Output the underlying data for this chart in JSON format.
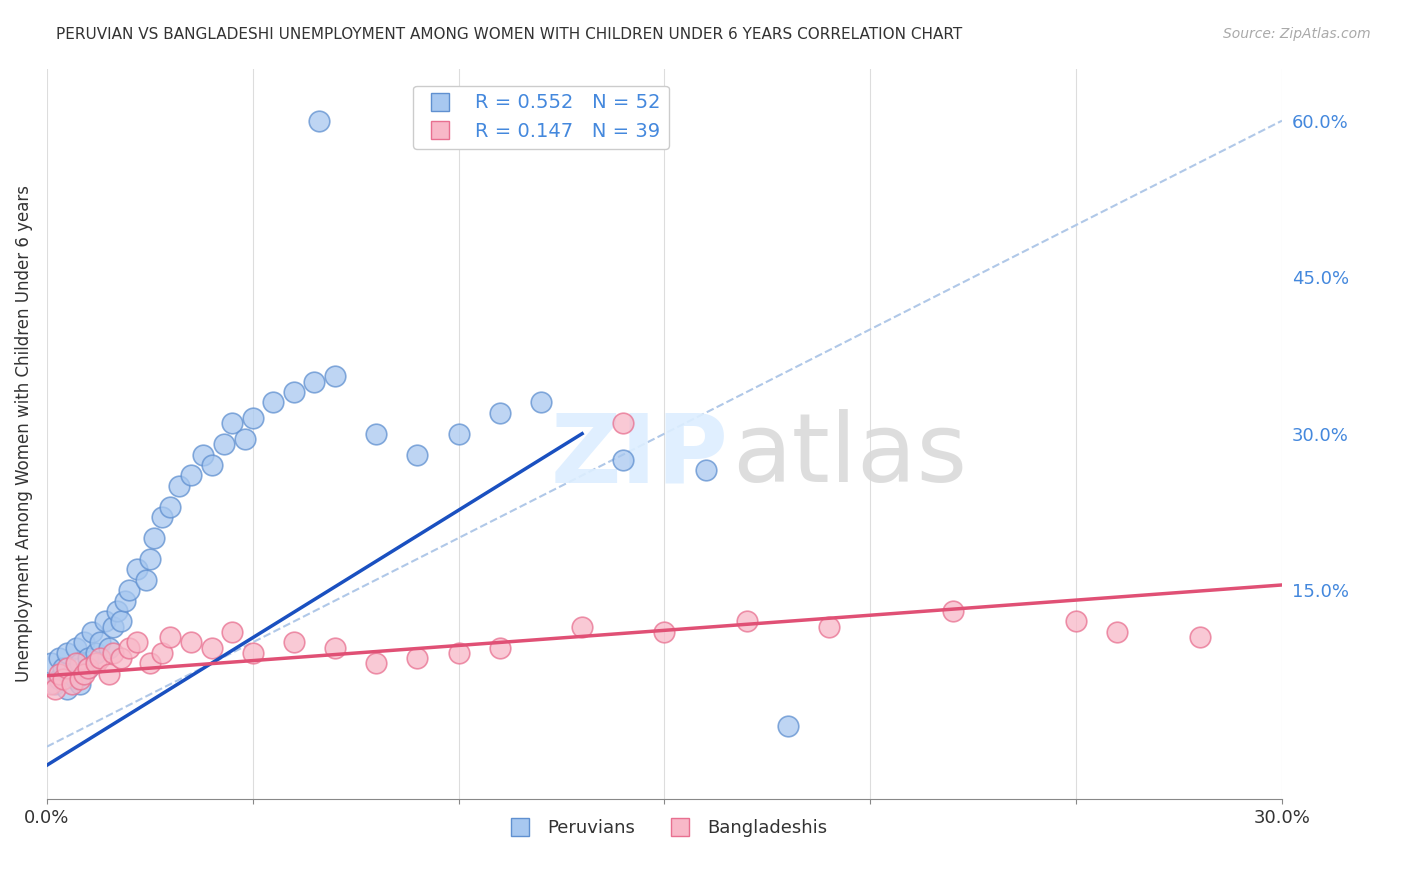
{
  "title": "PERUVIAN VS BANGLADESHI UNEMPLOYMENT AMONG WOMEN WITH CHILDREN UNDER 6 YEARS CORRELATION CHART",
  "source": "Source: ZipAtlas.com",
  "ylabel": "Unemployment Among Women with Children Under 6 years",
  "xlim": [
    0.0,
    0.3
  ],
  "ylim": [
    -0.05,
    0.65
  ],
  "yticks_right": [
    0.15,
    0.3,
    0.45,
    0.6
  ],
  "ytick_right_labels": [
    "15.0%",
    "30.0%",
    "45.0%",
    "60.0%"
  ],
  "blue_R": 0.552,
  "blue_N": 52,
  "pink_R": 0.147,
  "pink_N": 39,
  "blue_color": "#a8c8f0",
  "blue_edge_color": "#6090d0",
  "pink_color": "#f8b8c8",
  "pink_edge_color": "#e87090",
  "blue_line_color": "#1a50c0",
  "pink_line_color": "#e05075",
  "ref_line_color": "#b0c8e8",
  "blue_scatter_x": [
    0.001,
    0.002,
    0.003,
    0.003,
    0.004,
    0.005,
    0.005,
    0.006,
    0.007,
    0.007,
    0.008,
    0.008,
    0.009,
    0.01,
    0.01,
    0.011,
    0.012,
    0.013,
    0.014,
    0.015,
    0.016,
    0.017,
    0.018,
    0.019,
    0.02,
    0.022,
    0.024,
    0.025,
    0.026,
    0.028,
    0.03,
    0.032,
    0.035,
    0.038,
    0.04,
    0.043,
    0.045,
    0.048,
    0.05,
    0.055,
    0.06,
    0.065,
    0.07,
    0.08,
    0.09,
    0.1,
    0.11,
    0.12,
    0.14,
    0.16,
    0.066,
    0.18
  ],
  "blue_scatter_y": [
    0.08,
    0.06,
    0.085,
    0.065,
    0.075,
    0.09,
    0.055,
    0.07,
    0.095,
    0.065,
    0.08,
    0.06,
    0.1,
    0.085,
    0.075,
    0.11,
    0.09,
    0.1,
    0.12,
    0.095,
    0.115,
    0.13,
    0.12,
    0.14,
    0.15,
    0.17,
    0.16,
    0.18,
    0.2,
    0.22,
    0.23,
    0.25,
    0.26,
    0.28,
    0.27,
    0.29,
    0.31,
    0.295,
    0.315,
    0.33,
    0.34,
    0.35,
    0.355,
    0.3,
    0.28,
    0.3,
    0.32,
    0.33,
    0.275,
    0.265,
    0.6,
    0.02
  ],
  "pink_scatter_x": [
    0.001,
    0.002,
    0.003,
    0.004,
    0.005,
    0.006,
    0.007,
    0.008,
    0.009,
    0.01,
    0.012,
    0.013,
    0.015,
    0.016,
    0.018,
    0.02,
    0.022,
    0.025,
    0.028,
    0.03,
    0.035,
    0.04,
    0.045,
    0.05,
    0.06,
    0.07,
    0.08,
    0.09,
    0.1,
    0.11,
    0.13,
    0.15,
    0.17,
    0.19,
    0.22,
    0.25,
    0.26,
    0.28,
    0.14
  ],
  "pink_scatter_y": [
    0.06,
    0.055,
    0.07,
    0.065,
    0.075,
    0.06,
    0.08,
    0.065,
    0.07,
    0.075,
    0.08,
    0.085,
    0.07,
    0.09,
    0.085,
    0.095,
    0.1,
    0.08,
    0.09,
    0.105,
    0.1,
    0.095,
    0.11,
    0.09,
    0.1,
    0.095,
    0.08,
    0.085,
    0.09,
    0.095,
    0.115,
    0.11,
    0.12,
    0.115,
    0.13,
    0.12,
    0.11,
    0.105,
    0.31
  ],
  "blue_line_x": [
    -0.005,
    0.13
  ],
  "blue_line_y": [
    -0.03,
    0.3
  ],
  "pink_line_x": [
    0.0,
    0.3
  ],
  "pink_line_y": [
    0.068,
    0.155
  ]
}
